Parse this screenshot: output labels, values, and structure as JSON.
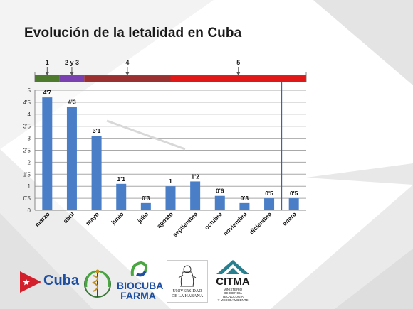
{
  "slide": {
    "title": "Evolución de la letalidad en Cuba"
  },
  "chart_data": {
    "type": "bar",
    "categories": [
      "marzo",
      "abril",
      "mayo",
      "junio",
      "julio",
      "agosto",
      "septiembre",
      "octubre",
      "noviembre",
      "diciembre",
      "enero"
    ],
    "values": [
      4.7,
      4.3,
      3.1,
      1.1,
      0.3,
      1,
      1.2,
      0.6,
      0.3,
      0.5,
      0.5
    ],
    "data_labels": [
      "4'7",
      "4'3",
      "3'1",
      "1'1",
      "0'3",
      "1",
      "1'2",
      "0'6",
      "0'3",
      "0'5",
      "0'5"
    ],
    "ytick_labels": [
      "0",
      "0'5",
      "1",
      "1'5",
      "2",
      "2'5",
      "3",
      "3'5",
      "4",
      "4'5",
      "5"
    ],
    "ytick_values": [
      0,
      0.5,
      1,
      1.5,
      2,
      2.5,
      3,
      3.5,
      4,
      4.5,
      5
    ],
    "ylim": [
      0,
      5
    ],
    "grid": true,
    "bar_color": "#4a7fc8",
    "phases": [
      {
        "label": "1",
        "start": 0,
        "end": 1,
        "color": "#4e7a2e"
      },
      {
        "label": "2 y 3",
        "start": 1,
        "end": 2,
        "color": "#7a3fb0"
      },
      {
        "label": "4",
        "start": 2,
        "end": 5.5,
        "color": "#9b3030"
      },
      {
        "label": "5",
        "start": 5.5,
        "end": 11,
        "color": "#e01818"
      }
    ],
    "marker_after_category": "diciembre"
  },
  "logos": {
    "cuba": "Cuba",
    "biocuba_line1": "BIOCUBA",
    "biocuba_line2": "FARMA",
    "uh_line1": "UNIVERSIDAD",
    "uh_line2": "DE LA HABANA",
    "citma": "CITMA",
    "citma_sub1": "MINISTERIO",
    "citma_sub2": "DE CIENCIA",
    "citma_sub3": "TECNOLOGÍA",
    "citma_sub4": "Y MEDIO AMBIENTE"
  },
  "colors": {
    "flag_red": "#d21f2b",
    "flag_blue": "#1f4fa0",
    "biocuba_blue": "#1f4fa0",
    "biocuba_green": "#4aa640",
    "citma_teal": "#2a7f8f"
  }
}
